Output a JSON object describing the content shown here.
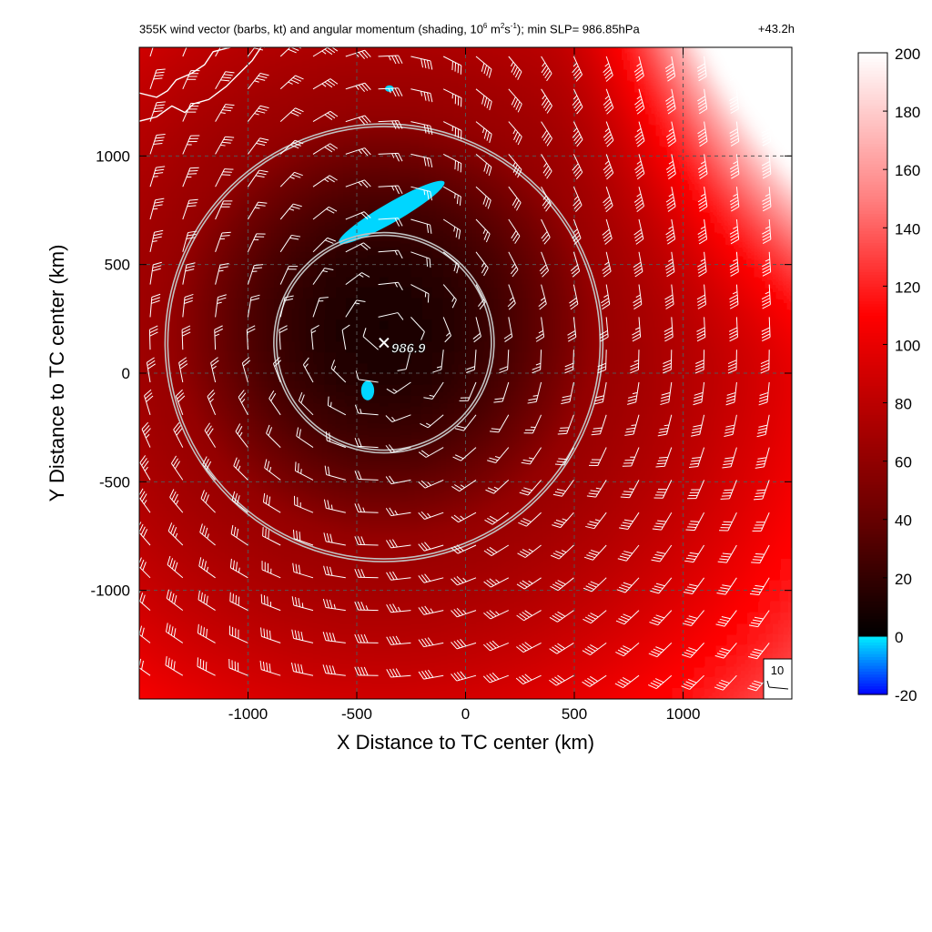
{
  "chart_data": {
    "type": "heatmap",
    "title_main": "355K wind vector (barbs, kt) and angular momentum (shading, 10",
    "title_exp1": "6",
    "title_unit_a": " m",
    "title_exp2": "2",
    "title_unit_b": "s",
    "title_exp3": "-1",
    "title_tail": "); min SLP= 986.85hPa",
    "forecast_lead": "+43.2h",
    "xlabel": "X Distance to TC center (km)",
    "ylabel": "Y Distance to TC center (km)",
    "xlim": [
      -1500,
      1500
    ],
    "ylim": [
      -1500,
      1500
    ],
    "x_ticks": [
      -1000,
      -500,
      0,
      500,
      1000
    ],
    "x_tick_labels": [
      "-1000",
      "-500",
      "0",
      "500",
      "1000"
    ],
    "y_ticks": [
      -1000,
      -500,
      0,
      500,
      1000
    ],
    "y_tick_labels": [
      "-1000",
      "-500",
      "0",
      "500",
      "1000"
    ],
    "grid": "dashed",
    "colorbar": {
      "min": -20,
      "max": 200,
      "ticks": [
        200,
        180,
        160,
        140,
        120,
        100,
        80,
        60,
        40,
        20,
        0,
        -20
      ],
      "tick_labels": [
        "200",
        "180",
        "160",
        "140",
        "120",
        "100",
        "80",
        "60",
        "40",
        "20",
        "0",
        "-20"
      ],
      "colormap": [
        {
          "value": -20,
          "color": "#0000ff"
        },
        {
          "value": 0,
          "color": "#00eeff"
        },
        {
          "value": 0.01,
          "color": "#000000"
        },
        {
          "value": 40,
          "color": "#660000"
        },
        {
          "value": 80,
          "color": "#bb0000"
        },
        {
          "value": 110,
          "color": "#ff0000"
        },
        {
          "value": 150,
          "color": "#ff8080"
        },
        {
          "value": 200,
          "color": "#ffffff"
        }
      ]
    },
    "storm_center": {
      "x": -375,
      "y": 140,
      "label": "986.9"
    },
    "radius_rings_km": [
      500,
      1000
    ],
    "reference_barb": {
      "speed_kt": 10,
      "label": "10"
    },
    "negative_regions": [
      {
        "name": "north-band",
        "center": [
          -340,
          740
        ],
        "rx": 280,
        "ry": 45,
        "angle_deg": -30
      },
      {
        "name": "near-center",
        "center": [
          -450,
          -80
        ],
        "rx": 30,
        "ry": 45,
        "angle_deg": 0
      },
      {
        "name": "far-north",
        "center": [
          -350,
          1310
        ],
        "rx": 20,
        "ry": 15,
        "angle_deg": 0
      }
    ]
  },
  "colors": {
    "ring": "#c0c0c0",
    "barb": "#ffffff",
    "coastline": "#ffffff",
    "grid": "#555555"
  }
}
